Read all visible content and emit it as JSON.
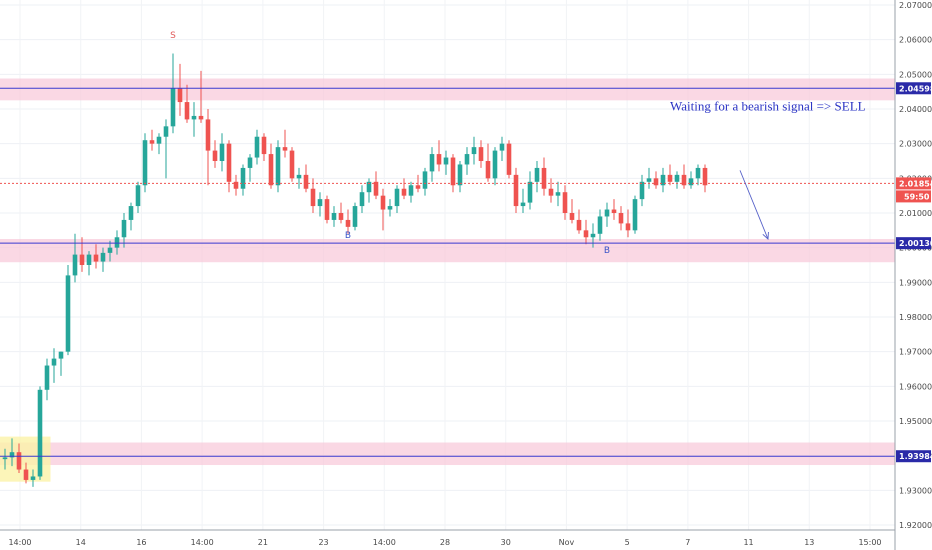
{
  "chart_data": {
    "type": "candlestick",
    "y_axis": {
      "min": 1.92,
      "max": 2.07,
      "ticks": [
        "2.07000",
        "2.06000",
        "2.05000",
        "2.04000",
        "2.03000",
        "2.02000",
        "2.01000",
        "2.00000",
        "1.99000",
        "1.98000",
        "1.97000",
        "1.96000",
        "1.95000",
        "1.94000",
        "1.93000",
        "1.92000"
      ],
      "position": "right"
    },
    "x_axis": {
      "ticks": [
        "14:00",
        "14",
        "16",
        "14:00",
        "21",
        "23",
        "14:00",
        "28",
        "30",
        "Nov",
        "5",
        "7",
        "11",
        "13",
        "15:00"
      ],
      "range": [
        0,
        128
      ]
    },
    "grid": true,
    "levels": [
      {
        "name": "resistance",
        "price": 2.04598,
        "label": "2.04598",
        "zone": [
          2.0425,
          2.0488
        ]
      },
      {
        "name": "current-price",
        "price": 2.01854,
        "label": "2.01854",
        "style": "dotted"
      },
      {
        "name": "support",
        "price": 2.0013,
        "label": "2.00130",
        "zone": [
          1.9958,
          2.0025
        ]
      },
      {
        "name": "lower-support",
        "price": 1.93984,
        "label": "1.93984",
        "zone": [
          1.9373,
          1.9438
        ]
      }
    ],
    "countdown": "59:50",
    "highlight_box": {
      "x": [
        0,
        6.5
      ],
      "y": [
        1.9325,
        1.9455
      ]
    },
    "signals": [
      {
        "text": "S",
        "x": 24,
        "price": 2.0605,
        "color": "#e05a5a"
      },
      {
        "text": "B",
        "x": 49,
        "price": 2.0028,
        "color": "#3a55c8"
      },
      {
        "text": "B",
        "x": 86,
        "price": 1.9985,
        "color": "#3a55c8"
      }
    ],
    "annotation": {
      "text": "Waiting for a bearish signal => SELL",
      "x": 95,
      "price": 2.0395
    },
    "arrow": {
      "from": {
        "x": 105,
        "price": 2.0223
      },
      "to": {
        "x": 109,
        "price": 2.0025
      }
    },
    "up_color": "#26a69a",
    "down_color": "#ef5350",
    "candles": [
      [
        1.939,
        1.942,
        1.936,
        1.9395
      ],
      [
        1.9395,
        1.945,
        1.937,
        1.941
      ],
      [
        1.941,
        1.9435,
        1.935,
        1.936
      ],
      [
        1.936,
        1.938,
        1.932,
        1.933
      ],
      [
        1.933,
        1.936,
        1.931,
        1.934
      ],
      [
        1.934,
        1.96,
        1.933,
        1.959
      ],
      [
        1.959,
        1.968,
        1.956,
        1.966
      ],
      [
        1.966,
        1.971,
        1.961,
        1.968
      ],
      [
        1.968,
        1.97,
        1.963,
        1.97
      ],
      [
        1.97,
        1.995,
        1.969,
        1.992
      ],
      [
        1.992,
        2.004,
        1.99,
        1.998
      ],
      [
        1.998,
        2.003,
        1.993,
        1.995
      ],
      [
        1.995,
        1.999,
        1.992,
        1.998
      ],
      [
        1.998,
        2.001,
        1.994,
        1.996
      ],
      [
        1.996,
        2.0,
        1.993,
        1.9985
      ],
      [
        1.9985,
        2.002,
        1.996,
        2.0
      ],
      [
        2.0,
        2.005,
        1.998,
        2.003
      ],
      [
        2.003,
        2.01,
        2.0,
        2.008
      ],
      [
        2.008,
        2.013,
        2.005,
        2.012
      ],
      [
        2.012,
        2.019,
        2.01,
        2.018
      ],
      [
        2.018,
        2.033,
        2.016,
        2.031
      ],
      [
        2.031,
        2.034,
        2.028,
        2.03
      ],
      [
        2.03,
        2.033,
        2.027,
        2.032
      ],
      [
        2.032,
        2.037,
        2.02,
        2.035
      ],
      [
        2.035,
        2.056,
        2.033,
        2.046
      ],
      [
        2.046,
        2.053,
        2.038,
        2.042
      ],
      [
        2.042,
        2.047,
        2.036,
        2.037
      ],
      [
        2.037,
        2.042,
        2.032,
        2.038
      ],
      [
        2.038,
        2.051,
        2.036,
        2.037
      ],
      [
        2.037,
        2.04,
        2.018,
        2.028
      ],
      [
        2.028,
        2.031,
        2.023,
        2.025
      ],
      [
        2.025,
        2.033,
        2.022,
        2.03
      ],
      [
        2.03,
        2.031,
        2.016,
        2.019
      ],
      [
        2.019,
        2.021,
        2.015,
        2.017
      ],
      [
        2.017,
        2.024,
        2.015,
        2.023
      ],
      [
        2.023,
        2.027,
        2.019,
        2.026
      ],
      [
        2.026,
        2.034,
        2.024,
        2.032
      ],
      [
        2.032,
        2.033,
        2.025,
        2.027
      ],
      [
        2.027,
        2.03,
        2.017,
        2.018
      ],
      [
        2.018,
        2.031,
        2.016,
        2.029
      ],
      [
        2.029,
        2.034,
        2.026,
        2.028
      ],
      [
        2.028,
        2.029,
        2.019,
        2.02
      ],
      [
        2.02,
        2.023,
        2.017,
        2.021
      ],
      [
        2.021,
        2.024,
        2.016,
        2.017
      ],
      [
        2.017,
        2.02,
        2.01,
        2.012
      ],
      [
        2.012,
        2.016,
        2.009,
        2.014
      ],
      [
        2.014,
        2.015,
        2.007,
        2.008
      ],
      [
        2.008,
        2.012,
        2.006,
        2.01
      ],
      [
        2.01,
        2.013,
        2.007,
        2.008
      ],
      [
        2.008,
        2.011,
        2.004,
        2.006
      ],
      [
        2.006,
        2.013,
        2.005,
        2.012
      ],
      [
        2.012,
        2.018,
        2.01,
        2.016
      ],
      [
        2.016,
        2.02,
        2.013,
        2.019
      ],
      [
        2.019,
        2.022,
        2.014,
        2.015
      ],
      [
        2.015,
        2.017,
        2.005,
        2.011
      ],
      [
        2.011,
        2.014,
        2.009,
        2.012
      ],
      [
        2.012,
        2.018,
        2.01,
        2.017
      ],
      [
        2.017,
        2.02,
        2.014,
        2.015
      ],
      [
        2.015,
        2.019,
        2.013,
        2.018
      ],
      [
        2.018,
        2.021,
        2.016,
        2.017
      ],
      [
        2.017,
        2.023,
        2.015,
        2.022
      ],
      [
        2.022,
        2.029,
        2.019,
        2.027
      ],
      [
        2.027,
        2.031,
        2.022,
        2.024
      ],
      [
        2.024,
        2.028,
        2.021,
        2.026
      ],
      [
        2.026,
        2.027,
        2.016,
        2.018
      ],
      [
        2.018,
        2.025,
        2.016,
        2.024
      ],
      [
        2.024,
        2.029,
        2.021,
        2.027
      ],
      [
        2.027,
        2.032,
        2.024,
        2.029
      ],
      [
        2.029,
        2.031,
        2.023,
        2.025
      ],
      [
        2.025,
        2.03,
        2.019,
        2.02
      ],
      [
        2.02,
        2.029,
        2.018,
        2.028
      ],
      [
        2.028,
        2.032,
        2.025,
        2.03
      ],
      [
        2.03,
        2.031,
        2.02,
        2.021
      ],
      [
        2.021,
        2.023,
        2.01,
        2.012
      ],
      [
        2.012,
        2.017,
        2.01,
        2.013
      ],
      [
        2.013,
        2.022,
        2.011,
        2.019
      ],
      [
        2.019,
        2.025,
        2.016,
        2.023
      ],
      [
        2.023,
        2.026,
        2.015,
        2.017
      ],
      [
        2.017,
        2.02,
        2.013,
        2.015
      ],
      [
        2.015,
        2.019,
        2.012,
        2.016
      ],
      [
        2.016,
        2.018,
        2.008,
        2.01
      ],
      [
        2.01,
        2.014,
        2.007,
        2.008
      ],
      [
        2.008,
        2.011,
        2.004,
        2.005
      ],
      [
        2.005,
        2.008,
        2.001,
        2.003
      ],
      [
        2.003,
        2.007,
        2.0,
        2.004
      ],
      [
        2.004,
        2.011,
        2.002,
        2.009
      ],
      [
        2.009,
        2.013,
        2.006,
        2.011
      ],
      [
        2.011,
        2.014,
        2.008,
        2.01
      ],
      [
        2.01,
        2.012,
        2.005,
        2.007
      ],
      [
        2.007,
        2.011,
        2.003,
        2.005
      ],
      [
        2.005,
        2.015,
        2.004,
        2.014
      ],
      [
        2.014,
        2.021,
        2.012,
        2.019
      ],
      [
        2.019,
        2.023,
        2.017,
        2.02
      ],
      [
        2.02,
        2.022,
        2.017,
        2.018
      ],
      [
        2.018,
        2.023,
        2.016,
        2.021
      ],
      [
        2.021,
        2.024,
        2.018,
        2.019
      ],
      [
        2.019,
        2.022,
        2.017,
        2.021
      ],
      [
        2.021,
        2.024,
        2.017,
        2.018
      ],
      [
        2.018,
        2.022,
        2.017,
        2.02
      ],
      [
        2.02,
        2.024,
        2.018,
        2.023
      ],
      [
        2.023,
        2.024,
        2.016,
        2.018
      ]
    ]
  }
}
